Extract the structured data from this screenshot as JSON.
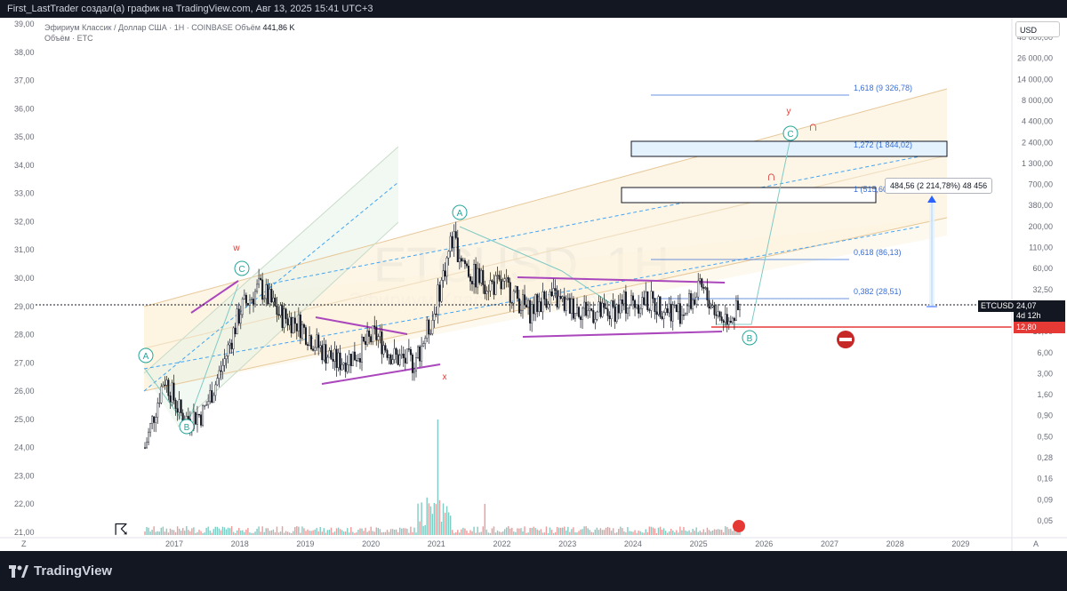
{
  "header": {
    "text": "First_LastTrader создал(а) график на TradingView.com, Авг 13, 2025 15:41 UTC+3"
  },
  "legend": {
    "symbol_line": "Эфириум Классик / Доллар США · 1Н · COINBASE",
    "volume_label": "Объём",
    "volume_value": "441,86 K",
    "volume_line": "Объём · ETC"
  },
  "watermark": {
    "ticker": "ETCUSD, 1H",
    "subtitle": "Эфириум Классик / Доллар США"
  },
  "scale_button": "USD",
  "price_tags": {
    "symbol": "ETCUSD",
    "price": "24,07",
    "countdown": "4d 12h",
    "stop_price": "12,80",
    "color_current": "#131722",
    "color_stop": "#e53935"
  },
  "tooltip": "484,56 (2 214,78%) 48 456",
  "footer": {
    "logo_text": "TradingView"
  },
  "corner_labels": {
    "left": "Z",
    "right": "A"
  },
  "chart_data": {
    "type": "candlestick",
    "x_ticks": [
      "2017",
      "2018",
      "2019",
      "2020",
      "2021",
      "2022",
      "2023",
      "2024",
      "2025",
      "2026",
      "2027",
      "2028",
      "2029"
    ],
    "y_left_ticks": [
      "39,00",
      "38,00",
      "37,00",
      "36,00",
      "35,00",
      "34,00",
      "33,00",
      "32,00",
      "31,00",
      "30,00",
      "29,00",
      "28,00",
      "27,00",
      "26,00",
      "25,00",
      "24,00",
      "23,00",
      "22,00",
      "21,00"
    ],
    "y_right_ticks": [
      "48 000,00",
      "26 000,00",
      "14 000,00",
      "8 000,00",
      "4 400,00",
      "2 400,00",
      "1 300,00",
      "700,00",
      "380,00",
      "200,00",
      "110,00",
      "60,00",
      "32,50",
      "17,50",
      "10,00",
      "6,00",
      "3,00",
      "1,60",
      "0,90",
      "0,50",
      "0,28",
      "0,16",
      "0,09",
      "0,05"
    ],
    "series": [
      {
        "name": "ETCUSD",
        "values": [
          24.0,
          26.5,
          25.0,
          25.2,
          26.8,
          28.9,
          29.7,
          28.7,
          28.4,
          27.6,
          27.0,
          27.3,
          28.0,
          27.2,
          27.0,
          28.6,
          31.4,
          30.1,
          29.8,
          29.6,
          28.8,
          29.4,
          29.0,
          28.9,
          28.7,
          29.1,
          29.2,
          29.0,
          28.8,
          29.6,
          28.6,
          28.8
        ]
      }
    ],
    "fib_levels": [
      {
        "label": "1,618 (9 326,78)"
      },
      {
        "label": "1,272 (1 844,02)"
      },
      {
        "label": "1 (515,60)"
      },
      {
        "label": "0,618 (86,13)"
      },
      {
        "label": "0,382 (28,51)"
      }
    ],
    "wave_labels": [
      {
        "text": "A",
        "kind": "circle"
      },
      {
        "text": "B",
        "kind": "circle"
      },
      {
        "text": "C",
        "kind": "circle"
      },
      {
        "text": "w",
        "kind": "plain"
      },
      {
        "text": "A",
        "kind": "circle"
      },
      {
        "text": "x",
        "kind": "plain"
      },
      {
        "text": "B",
        "kind": "circle"
      },
      {
        "text": "C",
        "kind": "circle"
      },
      {
        "text": "y",
        "kind": "plain"
      }
    ],
    "colors": {
      "wave_circle": "#26a69a",
      "wave_plain": "#e53935",
      "pattern": "#ab47bc",
      "fib": "#3a6fd8",
      "channel_fill": "#fbe9c6",
      "stop": "#e53935"
    }
  }
}
